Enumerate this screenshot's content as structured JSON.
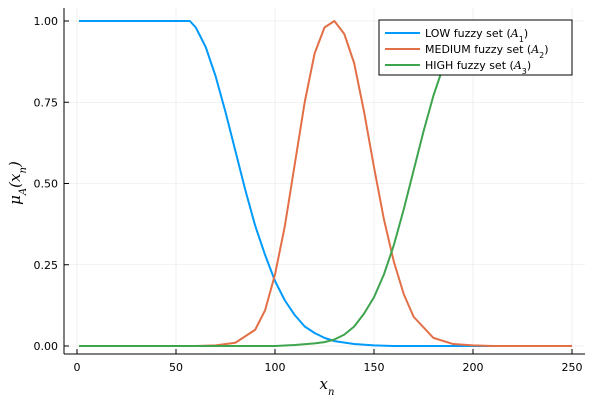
{
  "chart_data": {
    "type": "line",
    "xlabel": {
      "base": "x",
      "sub": "n"
    },
    "ylabel": {
      "mu": "μ",
      "sub": "A",
      "var": "x",
      "var_sub": "n"
    },
    "xlim": [
      0,
      250
    ],
    "ylim": [
      0,
      1
    ],
    "xticks": [
      0,
      50,
      100,
      150,
      200,
      250
    ],
    "xtick_labels": [
      "0",
      "50",
      "100",
      "150",
      "200",
      "250"
    ],
    "yticks": [
      0,
      0.25,
      0.5,
      0.75,
      1.0
    ],
    "ytick_labels": [
      "0.00",
      "0.25",
      "0.50",
      "0.75",
      "1.00"
    ],
    "grid": true,
    "legend_position": "top-right",
    "series": [
      {
        "name": "LOW fuzzy set",
        "set_symbol": "A",
        "set_index": "1",
        "color": "#009AFA",
        "x": [
          1,
          20,
          40,
          57,
          60,
          65,
          70,
          75,
          80,
          85,
          90,
          95,
          100,
          105,
          110,
          115,
          120,
          125,
          130,
          140,
          150,
          160,
          180,
          250
        ],
        "y": [
          1.0,
          1.0,
          1.0,
          1.0,
          0.98,
          0.92,
          0.83,
          0.72,
          0.6,
          0.48,
          0.37,
          0.28,
          0.2,
          0.14,
          0.095,
          0.06,
          0.04,
          0.025,
          0.015,
          0.006,
          0.002,
          0.0,
          0.0,
          0.0
        ]
      },
      {
        "name": "MEDIUM fuzzy set",
        "set_symbol": "A",
        "set_index": "2",
        "color": "#E36F47",
        "x": [
          1,
          50,
          60,
          70,
          80,
          90,
          95,
          100,
          105,
          110,
          115,
          120,
          125,
          130,
          135,
          140,
          145,
          150,
          155,
          160,
          165,
          170,
          180,
          190,
          200,
          210,
          250
        ],
        "y": [
          0.0,
          0.0,
          0.0,
          0.002,
          0.01,
          0.05,
          0.11,
          0.22,
          0.37,
          0.56,
          0.75,
          0.9,
          0.98,
          1.0,
          0.96,
          0.87,
          0.72,
          0.55,
          0.39,
          0.26,
          0.16,
          0.09,
          0.025,
          0.006,
          0.002,
          0.0,
          0.0
        ]
      },
      {
        "name": "HIGH fuzzy set",
        "set_symbol": "A",
        "set_index": "3",
        "color": "#3EA44E",
        "x": [
          1,
          50,
          100,
          110,
          120,
          125,
          130,
          135,
          140,
          145,
          150,
          155,
          160,
          165,
          170,
          175,
          180,
          185,
          190,
          195,
          200,
          204,
          220,
          250
        ],
        "y": [
          0.0,
          0.0,
          0.0,
          0.003,
          0.008,
          0.012,
          0.02,
          0.035,
          0.06,
          0.1,
          0.15,
          0.22,
          0.31,
          0.42,
          0.54,
          0.66,
          0.77,
          0.86,
          0.93,
          0.97,
          0.99,
          1.0,
          1.0,
          1.0
        ]
      }
    ]
  }
}
